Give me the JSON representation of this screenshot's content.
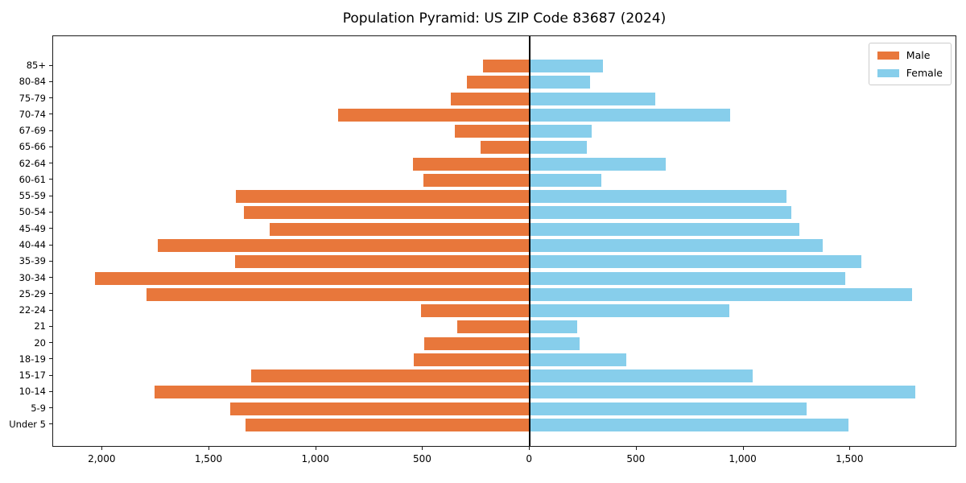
{
  "title": "Population Pyramid: US ZIP Code 83687 (2024)",
  "legend": {
    "male_label": "Male",
    "female_label": "Female",
    "position": "upper right"
  },
  "colors": {
    "male": "#e8773b",
    "female": "#87ceeb",
    "axis": "#1a1a1a",
    "background": "#ffffff"
  },
  "chart_data": {
    "type": "bar",
    "subtype": "population-pyramid-horizontal",
    "title": "Population Pyramid: US ZIP Code 83687 (2024)",
    "categories_top_to_bottom": [
      "85+",
      "80-84",
      "75-79",
      "70-74",
      "67-69",
      "65-66",
      "62-64",
      "60-61",
      "55-59",
      "50-54",
      "45-49",
      "40-44",
      "35-39",
      "30-34",
      "25-29",
      "22-24",
      "21",
      "20",
      "18-19",
      "15-17",
      "10-14",
      "5-9",
      "Under 5"
    ],
    "series": [
      {
        "name": "Male",
        "side": "left",
        "values": [
          219,
          294,
          370,
          897,
          352,
          231,
          548,
          497,
          1376,
          1337,
          1218,
          1742,
          1379,
          2035,
          1794,
          508,
          340,
          495,
          543,
          1304,
          1756,
          1403,
          1330
        ]
      },
      {
        "name": "Female",
        "side": "right",
        "values": [
          341,
          281,
          588,
          937,
          289,
          266,
          637,
          334,
          1201,
          1225,
          1261,
          1370,
          1551,
          1475,
          1789,
          934,
          221,
          233,
          451,
          1043,
          1804,
          1295,
          1491
        ]
      }
    ],
    "xlim": [
      -2231,
      2000
    ],
    "x_ticks": [
      {
        "value": -2000,
        "label": "2,000"
      },
      {
        "value": -1500,
        "label": "1,500"
      },
      {
        "value": -1000,
        "label": "1,000"
      },
      {
        "value": -500,
        "label": "500"
      },
      {
        "value": 0,
        "label": "0"
      },
      {
        "value": 500,
        "label": "500"
      },
      {
        "value": 1000,
        "label": "1,000"
      },
      {
        "value": 1500,
        "label": "1,500"
      }
    ],
    "grid": false,
    "zero_line": true,
    "legend_entries": [
      "Male",
      "Female"
    ],
    "xlabel": "",
    "ylabel": ""
  }
}
